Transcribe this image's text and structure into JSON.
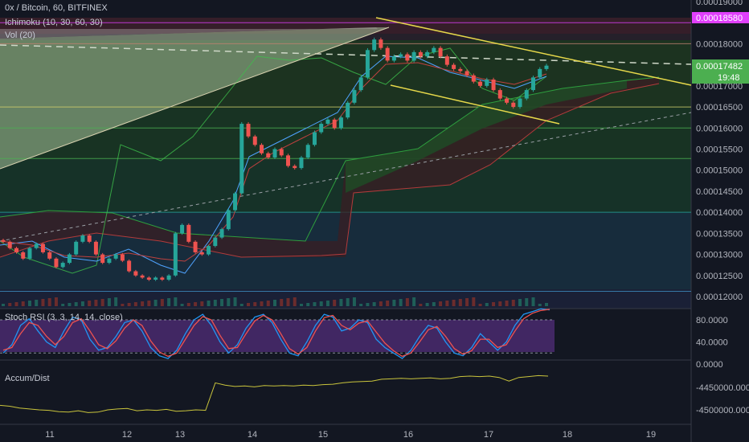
{
  "header": {
    "symbol_line": "0x / Bitcoin, 60, BITFINEX",
    "indicator_ichimoku": "Ichimoku (10, 30, 60, 30)",
    "indicator_volume": "Vol (20)"
  },
  "colors": {
    "background": "#131722",
    "candle_up": "#26a69a",
    "candle_down": "#ef5350",
    "magenta_level": "#e040fb",
    "trendline": "#e6d84a",
    "current_price_tag": "#4caf50"
  },
  "price_panel": {
    "price_labels": [
      "0.00019000",
      "0.00018000",
      "0.00017000",
      "0.00016500",
      "0.00016000",
      "0.00015500",
      "0.00015000",
      "0.00014500",
      "0.00014000",
      "0.00013500",
      "0.00013000",
      "0.00012500",
      "0.00012000"
    ],
    "price_values": [
      0.00019,
      0.00018,
      0.00017,
      0.000165,
      0.00016,
      0.000155,
      0.00015,
      0.000145,
      0.00014,
      0.000135,
      0.00013,
      0.000125,
      0.00012
    ],
    "magenta_level_label": "0.00018580",
    "current_price_label": "0.00017482",
    "countdown_label": "19:48"
  },
  "stoch_panel": {
    "title": "Stoch RSI (3, 3, 14, 14, close)",
    "labels": [
      "80.0000",
      "40.0000",
      "0.0000"
    ],
    "values": [
      80,
      40,
      0
    ]
  },
  "accum_panel": {
    "title": "Accum/Dist",
    "labels": [
      "-4450000.0000",
      "-4500000.0000"
    ],
    "values": [
      -4450000,
      -4500000
    ]
  },
  "time_axis": {
    "labels": [
      "11",
      "12",
      "13",
      "14",
      "15",
      "16",
      "17",
      "18",
      "19"
    ]
  },
  "chart_data": {
    "type": "candlestick",
    "title": "0x / Bitcoin, 60, BITFINEX",
    "x_labels": [
      "11",
      "12",
      "13",
      "14",
      "15",
      "16",
      "17",
      "18",
      "19"
    ],
    "ylim": [
      0.000118,
      0.000192
    ],
    "grid": false,
    "current_price": 0.00017482,
    "magenta_level": 0.0001858,
    "horizontal_levels": [
      0.000185,
      0.00018,
      0.000165,
      0.00016,
      0.00015275,
      0.00014,
      0.00012125
    ],
    "close_path": [
      0.000133,
      0.0001315,
      0.0001305,
      0.000129,
      0.0001315,
      0.0001325,
      0.0001305,
      0.000129,
      0.000127,
      0.000128,
      0.00013,
      0.000133,
      0.0001345,
      0.000133,
      0.00013,
      0.000128,
      0.000129,
      0.00013,
      0.0001285,
      0.000126,
      0.000125,
      0.0001245,
      0.000124,
      0.0001245,
      0.000124,
      0.000125,
      0.000135,
      0.000137,
      0.000133,
      0.0001305,
      0.00013,
      0.000132,
      0.000134,
      0.000136,
      0.0001405,
      0.0001445,
      0.000161,
      0.000158,
      0.000156,
      0.000154,
      0.000153,
      0.000155,
      0.0001535,
      0.000151,
      0.0001505,
      0.000153,
      0.000156,
      0.000159,
      0.000161,
      0.000162,
      0.00016,
      0.0001625,
      0.000166,
      0.000169,
      0.000172,
      0.0001785,
      0.000181,
      0.000179,
      0.000176,
      0.000177,
      0.0001775,
      0.000176,
      0.000178,
      0.000177,
      0.000178,
      0.000179,
      0.000177,
      0.000175,
      0.000174,
      0.0001735,
      0.0001725,
      0.000171,
      0.00017,
      0.0001715,
      0.000169,
      0.000167,
      0.000166,
      0.000165,
      0.000167,
      0.000169,
      0.000172,
      0.000174,
      0.0001748
    ],
    "stoch_k": [
      20,
      35,
      70,
      82,
      60,
      40,
      30,
      60,
      85,
      80,
      45,
      25,
      30,
      50,
      75,
      80,
      60,
      30,
      15,
      10,
      25,
      55,
      80,
      90,
      70,
      40,
      20,
      35,
      65,
      85,
      90,
      75,
      45,
      20,
      15,
      40,
      70,
      90,
      85,
      60,
      65,
      80,
      75,
      45,
      30,
      20,
      10,
      25,
      50,
      70,
      65,
      40,
      20,
      15,
      30,
      55,
      40,
      25,
      40,
      70,
      90,
      95,
      100,
      98
    ],
    "stoch_d": [
      25,
      30,
      55,
      75,
      70,
      50,
      35,
      50,
      75,
      82,
      60,
      35,
      28,
      42,
      65,
      80,
      70,
      42,
      22,
      14,
      20,
      45,
      70,
      86,
      80,
      52,
      28,
      30,
      55,
      78,
      88,
      80,
      55,
      28,
      18,
      30,
      60,
      84,
      88,
      70,
      62,
      74,
      78,
      58,
      38,
      24,
      14,
      20,
      40,
      62,
      68,
      50,
      28,
      18,
      24,
      45,
      45,
      30,
      35,
      60,
      82,
      92,
      97,
      99
    ],
    "accum_dist": [
      -4490000,
      -4492000,
      -4496000,
      -4498000,
      -4500000,
      -4501000,
      -4504000,
      -4505000,
      -4502000,
      -4506000,
      -4505000,
      -4500000,
      -4498000,
      -4497000,
      -4502000,
      -4500000,
      -4501000,
      -4499000,
      -4503000,
      -4502000,
      -4500000,
      -4501000,
      -4440000,
      -4445000,
      -4448000,
      -4447000,
      -4449000,
      -4446000,
      -4447000,
      -4446000,
      -4447000,
      -4445000,
      -4446000,
      -4444000,
      -4443000,
      -4440000,
      -4438000,
      -4437000,
      -4436000,
      -4432000,
      -4431000,
      -4430000,
      -4431000,
      -4430000,
      -4429000,
      -4431000,
      -4430000,
      -4426000,
      -4425000,
      -4426000,
      -4425000,
      -4428000,
      -4436000,
      -4428000,
      -4426000,
      -4424000,
      -4425000
    ]
  }
}
